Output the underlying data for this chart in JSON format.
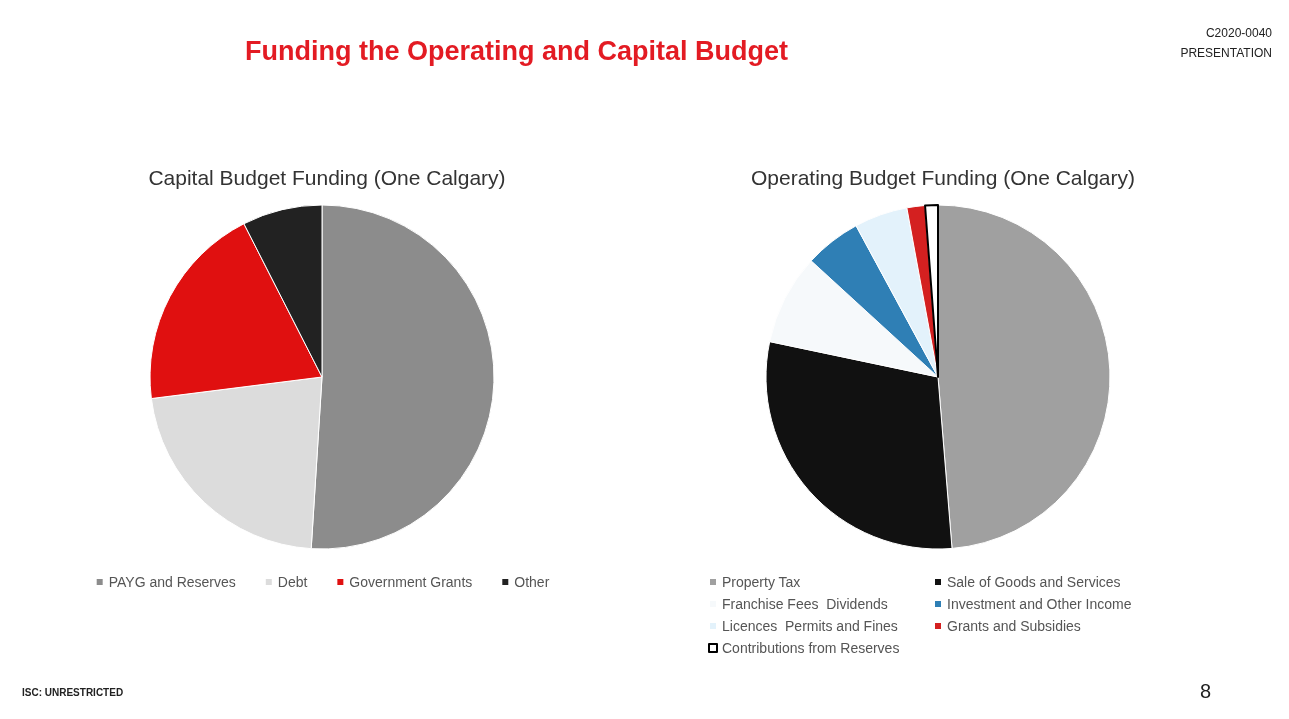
{
  "chart_data": [
    {
      "type": "other",
      "title": "Funding the Operating and Capital Budget",
      "annotations": [
        "C2020-0040",
        "PRESENTATION",
        "ISC: UNRESTRICTED",
        "8"
      ]
    },
    {
      "type": "pie",
      "title": "Capital Budget Funding (One Calgary)",
      "categories": [
        "PAYG and Reserves",
        "Debt",
        "Government Grants",
        "Other"
      ],
      "values": [
        51,
        22,
        19.5,
        7.5
      ],
      "colors": [
        "#8c8c8c",
        "#dcdcdc",
        "#e01010",
        "#222222"
      ],
      "legend": "bottom"
    },
    {
      "type": "pie",
      "title": "Operating Budget Funding (One Calgary)",
      "categories": [
        "Property Tax",
        "Sale of Goods and Services",
        "Franchise Fees  Dividends",
        "Investment and Other Income",
        "Licences  Permits and Fines",
        "Grants and Subsidies",
        "Contributions from Reserves"
      ],
      "values": [
        48.7,
        29.6,
        8.5,
        5.3,
        5,
        1.7,
        1.2
      ],
      "colors": [
        "#a0a0a0",
        "#111111",
        "#f6f9fb",
        "#2f7fb5",
        "#e3f2fb",
        "#d42020",
        "#ffffff"
      ],
      "legend": "bottom"
    }
  ]
}
